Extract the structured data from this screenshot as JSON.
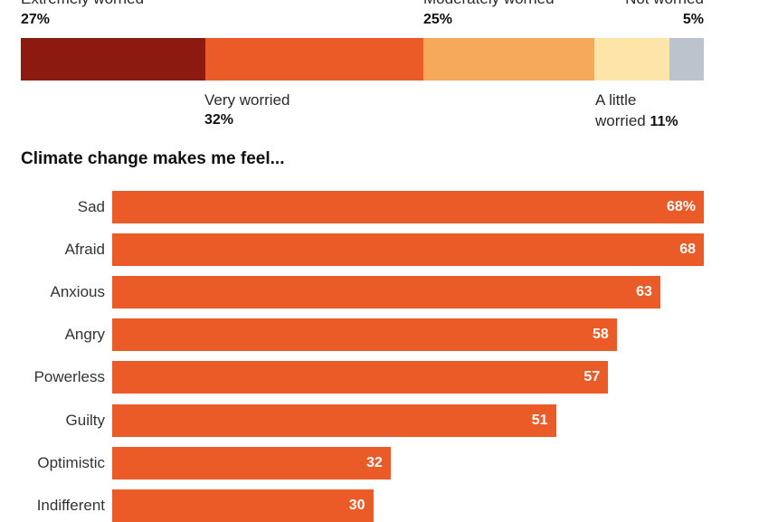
{
  "chart_data": [
    {
      "type": "bar",
      "orientation": "stacked-horizontal",
      "title": "",
      "categories": [
        "Extremely worried",
        "Very worried",
        "Moderately worried",
        "A little worried",
        "Not worried"
      ],
      "values": [
        27,
        32,
        25,
        11,
        5
      ],
      "value_labels": [
        "27%",
        "32%",
        "25%",
        "11%",
        "5%"
      ],
      "label_lines": [
        [
          "Extremely worried"
        ],
        [
          "Very worried"
        ],
        [
          "Moderately worried"
        ],
        [
          "A little",
          "worried"
        ],
        [
          "Not worried"
        ]
      ],
      "colors": [
        "#8c1a10",
        "#ea5b27",
        "#f7a95a",
        "#fde4a8",
        "#bcc3cc"
      ]
    },
    {
      "type": "bar",
      "orientation": "horizontal",
      "title": "Climate change makes me feel...",
      "categories": [
        "Sad",
        "Afraid",
        "Anxious",
        "Angry",
        "Powerless",
        "Guilty",
        "Optimistic",
        "Indifferent"
      ],
      "values": [
        68,
        68,
        63,
        58,
        57,
        51,
        32,
        30
      ],
      "value_labels": [
        "68%",
        "68",
        "63",
        "58",
        "57",
        "51",
        "32",
        "30"
      ],
      "xlim": [
        0,
        68
      ],
      "grid": false,
      "color": "#ea5b27"
    }
  ]
}
